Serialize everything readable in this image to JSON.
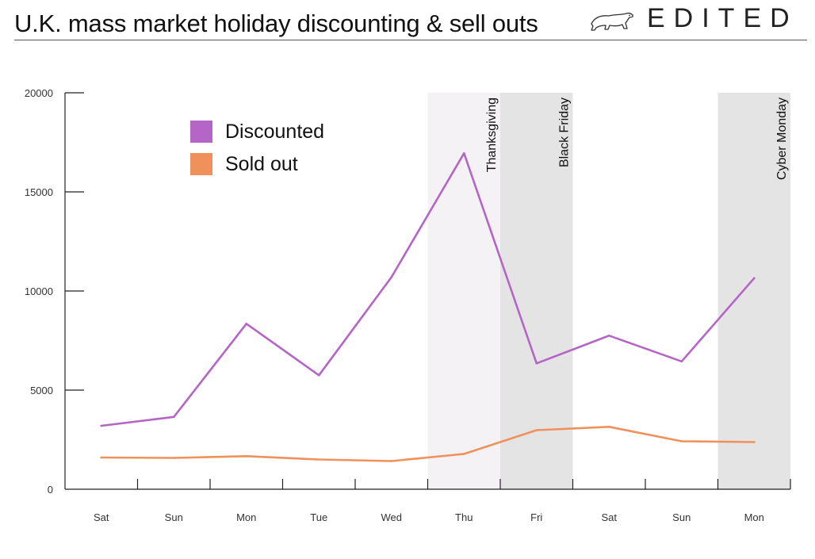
{
  "header": {
    "title": "U.K. mass market holiday discounting & sell outs",
    "brand": "EDITED",
    "logo_icon": "polar-bear-icon"
  },
  "colors": {
    "discounted": "#b565c6",
    "sold_out": "#f0915c",
    "band_light": "#f4f2f4",
    "band_dark": "#e4e4e4",
    "axis": "#222222"
  },
  "chart_data": {
    "type": "line",
    "title": "U.K. mass market holiday discounting & sell outs",
    "xlabel": "",
    "ylabel": "",
    "categories": [
      "Sat",
      "Sun",
      "Mon",
      "Tue",
      "Wed",
      "Thu",
      "Fri",
      "Sat",
      "Sun",
      "Mon"
    ],
    "ylim": [
      0,
      20000
    ],
    "yticks": [
      0,
      5000,
      10000,
      15000,
      20000
    ],
    "grid": false,
    "legend_position": "top-left",
    "series": [
      {
        "name": "Discounted",
        "color": "#b565c6",
        "values": [
          3200,
          3650,
          8350,
          5750,
          10700,
          16950,
          6350,
          7750,
          6450,
          10650
        ]
      },
      {
        "name": "Sold out",
        "color": "#f0915c",
        "values": [
          1600,
          1580,
          1670,
          1500,
          1420,
          1780,
          2980,
          3150,
          2420,
          2380
        ]
      }
    ],
    "bands": [
      {
        "label": "Thanksgiving",
        "category_index": 5,
        "color": "#f4f2f4"
      },
      {
        "label": "Black Friday",
        "category_index": 6,
        "color": "#e4e4e4"
      },
      {
        "label": "Cyber Monday",
        "category_index": 9,
        "color": "#e4e4e4"
      }
    ]
  }
}
